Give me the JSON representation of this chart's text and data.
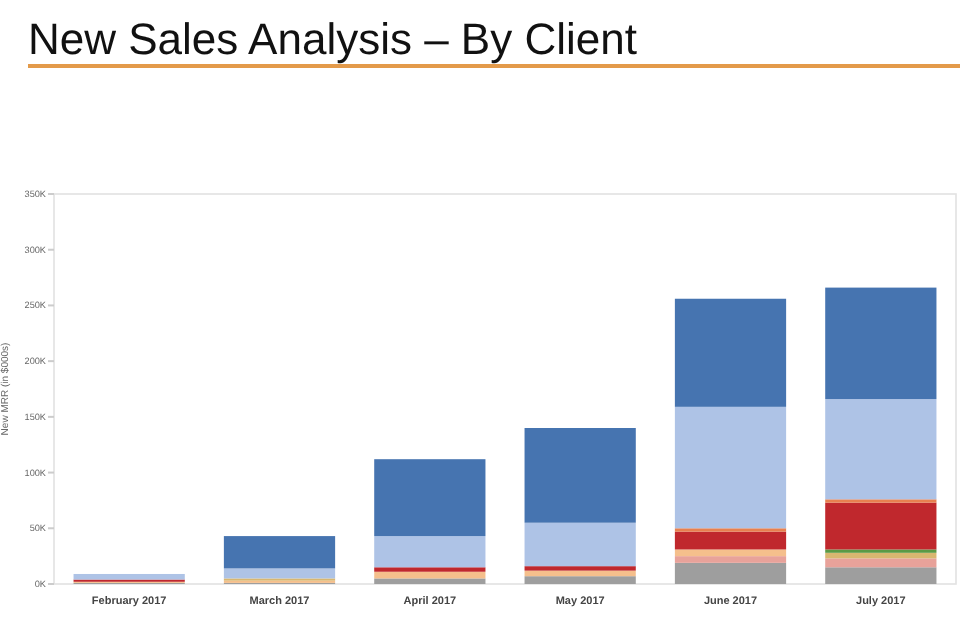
{
  "chart_data": {
    "type": "bar",
    "title": "New Sales Analysis – By Client",
    "ylabel": "New MRR (in $000s)",
    "stacked": true,
    "categories": [
      "February 2017",
      "March 2017",
      "April 2017",
      "May 2017",
      "June 2017",
      "July 2017"
    ],
    "series": [
      {
        "color": "#9e9e9e",
        "values": [
          1,
          1,
          5,
          7,
          19,
          15
        ]
      },
      {
        "color": "#e8a29a",
        "values": [
          0,
          0,
          0,
          0,
          6,
          8
        ]
      },
      {
        "color": "#f5bf8c",
        "values": [
          1,
          2,
          6,
          5,
          6,
          0
        ]
      },
      {
        "color": "#d9b770",
        "values": [
          0,
          2,
          0,
          0,
          0,
          5
        ]
      },
      {
        "color": "#5b9a45",
        "values": [
          0,
          0,
          0,
          0,
          0,
          3
        ]
      },
      {
        "color": "#c0282d",
        "values": [
          2,
          0,
          4,
          4,
          16,
          42
        ]
      },
      {
        "color": "#e8804f",
        "values": [
          0,
          0,
          0,
          0,
          3,
          3
        ]
      },
      {
        "color": "#aec3e6",
        "values": [
          5,
          9,
          28,
          39,
          109,
          90
        ]
      },
      {
        "color": "#4674b0",
        "values": [
          0,
          29,
          69,
          85,
          97,
          100
        ]
      }
    ],
    "ylim": [
      0,
      350
    ],
    "yticks": [
      {
        "value": 0,
        "label": "0K"
      },
      {
        "value": 50,
        "label": "50K"
      },
      {
        "value": 100,
        "label": "100K"
      },
      {
        "value": 150,
        "label": "150K"
      },
      {
        "value": 200,
        "label": "200K"
      },
      {
        "value": 250,
        "label": "250K"
      },
      {
        "value": 300,
        "label": "300K"
      },
      {
        "value": 350,
        "label": "350K"
      }
    ],
    "grid": false
  }
}
